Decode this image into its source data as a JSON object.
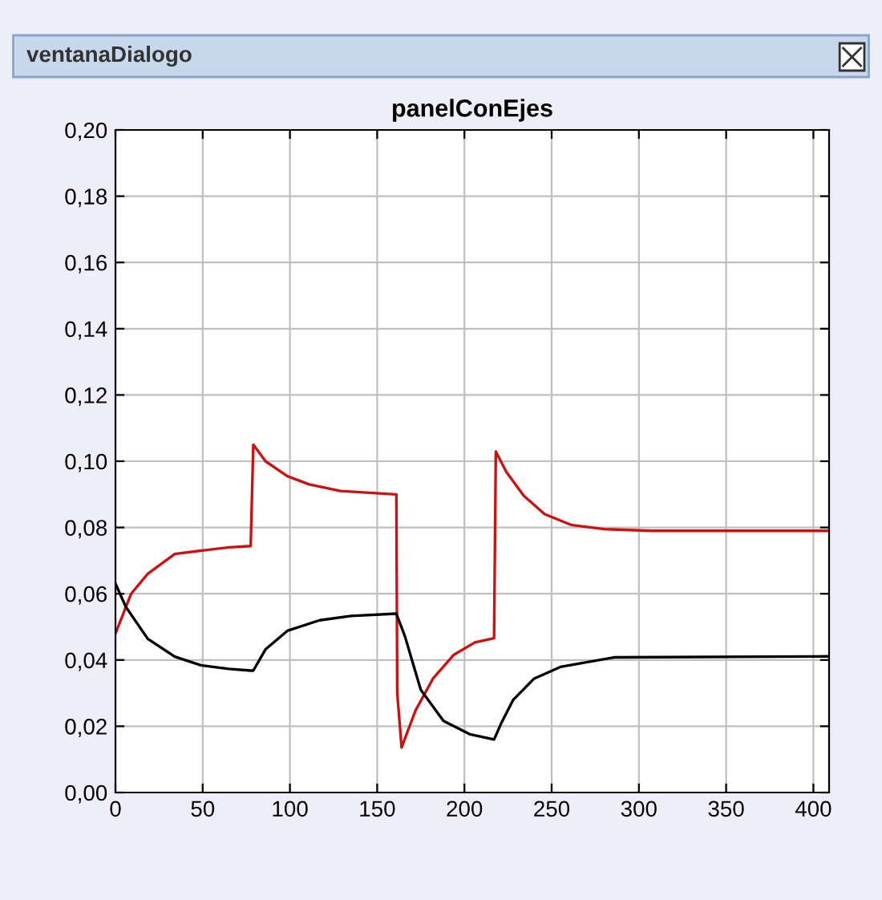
{
  "chart_data": {
    "type": "line",
    "title": "panelConEjes",
    "annotations": [
      "ventanaDialogo"
    ],
    "xlim": [
      0,
      409
    ],
    "xticks": [
      0,
      50,
      100,
      150,
      200,
      250,
      300,
      350,
      400
    ],
    "ylim": [
      0,
      0.2
    ],
    "yticks": [
      {
        "value": 0,
        "label": "0,00"
      },
      {
        "value": 0.02,
        "label": "0,02"
      },
      {
        "value": 0.04,
        "label": "0,04"
      },
      {
        "value": 0.06,
        "label": "0,06"
      },
      {
        "value": 0.08,
        "label": "0,08"
      },
      {
        "value": 0.1,
        "label": "0,10"
      },
      {
        "value": 0.12,
        "label": "0,12"
      },
      {
        "value": 0.14,
        "label": "0,14"
      },
      {
        "value": 0.16,
        "label": "0,16"
      },
      {
        "value": 0.18,
        "label": "0,18"
      },
      {
        "value": 0.2,
        "label": "0,20"
      }
    ],
    "grid": true,
    "marker": "none",
    "line_style": "solid",
    "series": [
      {
        "color": "#cc1111",
        "x": [
          0,
          9,
          18.5,
          34,
          49,
          65,
          77.5,
          79,
          86,
          98.5,
          111,
          129,
          161,
          161.5,
          164,
          172,
          182,
          194,
          206,
          217,
          218,
          224,
          234,
          246,
          261,
          280,
          308,
          409
        ],
        "values": [
          0.048,
          0.06,
          0.066,
          0.072,
          0.073,
          0.074,
          0.0744,
          0.105,
          0.1,
          0.0955,
          0.093,
          0.091,
          0.09,
          0.03,
          0.0136,
          0.0248,
          0.0344,
          0.0416,
          0.0453,
          0.0466,
          0.1029,
          0.0968,
          0.0896,
          0.084,
          0.0808,
          0.0795,
          0.079,
          0.079
        ]
      },
      {
        "color": "#000000",
        "x": [
          0,
          6,
          18.5,
          34,
          49,
          65,
          77.5,
          79,
          86,
          98.5,
          117,
          135,
          161,
          166,
          175,
          188,
          203,
          217,
          221,
          228,
          240,
          255,
          286,
          409
        ],
        "values": [
          0.063,
          0.056,
          0.0464,
          0.041,
          0.0384,
          0.0373,
          0.0368,
          0.0368,
          0.0432,
          0.0488,
          0.052,
          0.0533,
          0.054,
          0.047,
          0.031,
          0.0216,
          0.0176,
          0.016,
          0.0208,
          0.028,
          0.0344,
          0.0379,
          0.0408,
          0.0411
        ]
      }
    ]
  }
}
